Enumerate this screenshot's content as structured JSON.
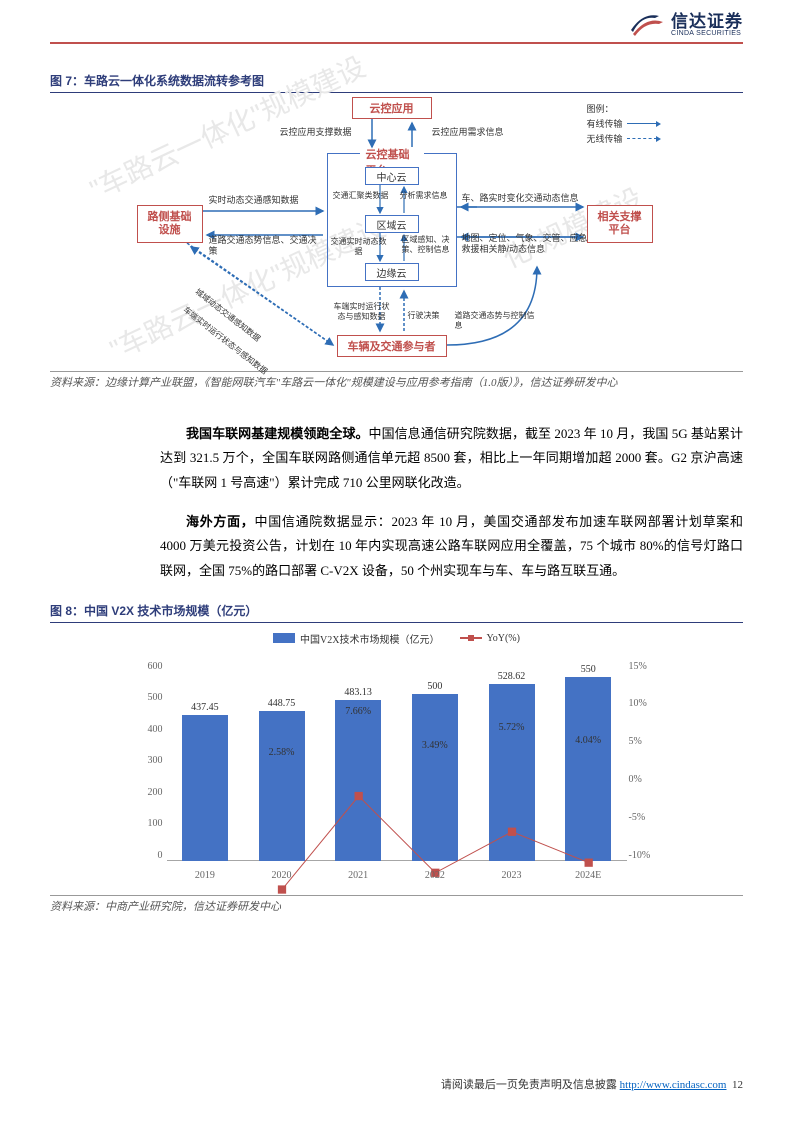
{
  "company": {
    "cn": "信达证券",
    "en": "CINDA SECURITIES"
  },
  "fig7": {
    "title": "图 7：车路云一体化系统数据流转参考图",
    "legend_label": "图例：",
    "legend_wired": "有线传输",
    "legend_wireless": "无线传输",
    "top": "云控应用",
    "top_left_lbl": "云控应用支撑数据",
    "top_right_lbl": "云控应用需求信息",
    "platform": "云控基础平台",
    "center_cloud": "中心云",
    "region_cloud": "区域云",
    "edge_cloud": "边缘云",
    "left_box1": "路侧基础",
    "left_box2": "设施",
    "right_box1": "相关支撑",
    "right_box2": "平台",
    "bottom": "车辆及交通参与者",
    "lbl_l1": "实时动态交通感知数据",
    "lbl_l2": "道路交通态势信息、交通决策",
    "lbl_l3": "城域动态交通感知数据",
    "lbl_l4": "车端实时运行状态与感知数据",
    "lbl_c1_a": "交通汇聚类数据",
    "lbl_c1_b": "分析需求信息",
    "lbl_c2_a": "交通实时动态数据",
    "lbl_c2_b": "区域感知、决策、控制信息",
    "lbl_c3_a": "车端实时运行状态与感知数据",
    "lbl_c3_b": "行驶决策",
    "lbl_c4": "道路交通态势与控制信息",
    "lbl_r1": "车、路实时变化交通动态信息",
    "lbl_r2": "地图、定位、气象、交管、应急救援相关静/动态信息",
    "source": "资料来源：边缘计算产业联盟，《智能网联汽车\"车路云一体化\"规模建设与应用参考指南（1.0版）》，信达证券研发中心"
  },
  "para1": "<b>我国车联网基建规模领跑全球。</b>中国信息通信研究院数据，截至 2023 年 10 月，我国 5G 基站累计达到 321.5 万个，全国车联网路侧通信单元超 8500 套，相比上一年同期增加超 2000 套。G2 京沪高速（\"车联网 1 号高速\"）累计完成 710 公里网联化改造。",
  "para2": "<b>海外方面，</b>中国信通院数据显示：2023 年 10 月，美国交通部发布加速车联网部署计划草案和 4000 万美元投资公告，计划在 10 年内实现高速公路车联网应用全覆盖，75 个城市 80%的信号灯路口联网，全国 75%的路口部署 C-V2X 设备，50 个州实现车与车、车与路互联互通。",
  "fig8": {
    "title": "图 8：中国 V2X 技术市场规模（亿元）",
    "legend_bar": "中国V2X技术市场规模（亿元）",
    "legend_line": "YoY(%)",
    "y1_ticks": [
      "600",
      "500",
      "400",
      "300",
      "200",
      "100",
      "0"
    ],
    "y2_ticks": [
      "15%",
      "10%",
      "5%",
      "0%",
      "-5%",
      "-10%"
    ],
    "categories": [
      "2019",
      "2020",
      "2021",
      "2022",
      "2023",
      "2024E"
    ],
    "bar_values": [
      437.45,
      448.75,
      483.13,
      500,
      528.62,
      550
    ],
    "bar_labels": [
      "437.45",
      "448.75",
      "483.13",
      "500",
      "528.62",
      "550"
    ],
    "yoy_values": [
      null,
      2.58,
      7.66,
      3.49,
      5.72,
      4.04
    ],
    "yoy_labels": [
      "",
      "2.58%",
      "7.66%",
      "3.49%",
      "5.72%",
      "4.04%"
    ],
    "y1_max": 600,
    "y1_min": 0,
    "y2_max": 15,
    "y2_min": -10,
    "bar_color": "#4472c4",
    "line_color": "#c0504d",
    "source": "资料来源：中商产业研究院，信达证券研发中心"
  },
  "footer": {
    "text": "请阅读最后一页免责声明及信息披露",
    "url_label": "http://www.cindasc.com",
    "page": "12"
  }
}
